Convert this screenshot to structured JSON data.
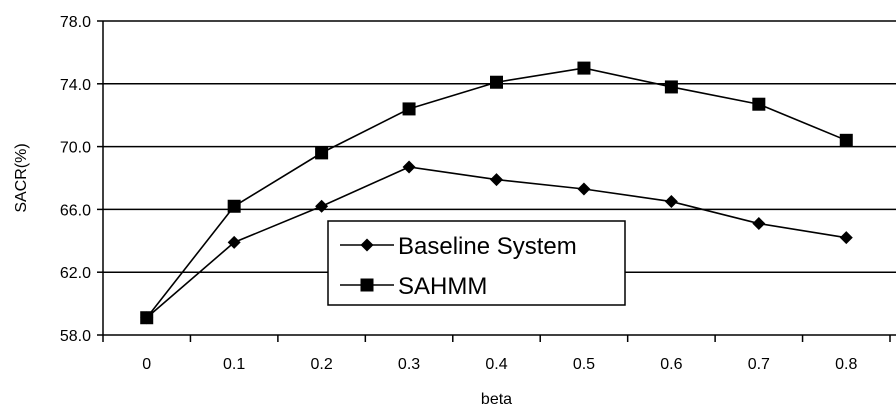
{
  "chart_data": {
    "type": "line",
    "categories": [
      "0",
      "0.1",
      "0.2",
      "0.3",
      "0.4",
      "0.5",
      "0.6",
      "0.7",
      "0.8"
    ],
    "series": [
      {
        "name": "Baseline System",
        "marker": "diamond",
        "values": [
          59.1,
          63.9,
          66.2,
          68.7,
          67.9,
          67.3,
          66.5,
          65.1,
          64.2
        ]
      },
      {
        "name": "SAHMM",
        "marker": "square",
        "values": [
          59.1,
          66.2,
          69.6,
          72.4,
          74.1,
          75.0,
          73.8,
          72.7,
          70.4
        ]
      }
    ],
    "xlabel": "beta",
    "ylabel": "SACR(%)",
    "ylim": [
      58.0,
      78.0
    ],
    "yticks": [
      "58.0",
      "62.0",
      "66.0",
      "70.0",
      "74.0",
      "78.0"
    ],
    "grid": "horizontal",
    "legend_position": "inside-bottom-center",
    "colors": {
      "line": "#000000",
      "grid": "#000000",
      "background": "#ffffff"
    }
  }
}
